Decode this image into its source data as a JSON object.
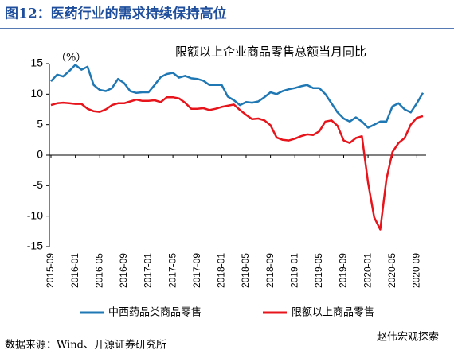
{
  "chart_data": {
    "type": "line",
    "header": "图12：医药行业的需求持续保持高位",
    "title": "限额以上企业商品零售总额当月同比",
    "y_label": "（%）",
    "source": "数据来源：Wind、开源证券研究所",
    "watermark": "赵伟宏观探索",
    "categories": [
      "2015-09",
      null,
      null,
      null,
      "2016-01",
      null,
      null,
      null,
      "2016-05",
      null,
      null,
      null,
      "2016-09",
      null,
      null,
      null,
      "2017-01",
      null,
      null,
      null,
      "2017-05",
      null,
      null,
      null,
      "2017-09",
      null,
      null,
      null,
      "2018-01",
      null,
      null,
      null,
      "2018-05",
      null,
      null,
      null,
      "2018-09",
      null,
      null,
      null,
      "2019-01",
      null,
      null,
      null,
      "2019-05",
      null,
      null,
      null,
      "2019-09",
      null,
      null,
      null,
      "2020-01",
      null,
      null,
      null,
      "2020-05",
      null,
      null,
      null,
      "2020-09",
      null
    ],
    "series": [
      {
        "name": "中西药品类商品零售",
        "color": "#1f77b4",
        "values": [
          12.1,
          13.2,
          12.9,
          13.8,
          14.8,
          14.0,
          14.5,
          11.5,
          10.7,
          10.5,
          11.0,
          12.5,
          11.8,
          10.5,
          10.2,
          10.3,
          10.3,
          11.5,
          12.8,
          13.3,
          13.5,
          12.7,
          13.0,
          12.6,
          12.5,
          12.2,
          11.5,
          11.5,
          11.5,
          9.6,
          9.0,
          8.2,
          8.7,
          8.6,
          8.8,
          9.5,
          10.3,
          10.0,
          10.5,
          10.8,
          11.0,
          11.3,
          11.5,
          11.0,
          11.0,
          10.0,
          8.5,
          7.0,
          6.0,
          5.5,
          6.2,
          5.5,
          4.5,
          5.0,
          5.5,
          5.5,
          8.0,
          8.5,
          7.5,
          7.0,
          8.5,
          10.2
        ]
      },
      {
        "name": "限额以上商品零售",
        "color": "#e8141b",
        "values": [
          8.2,
          8.5,
          8.6,
          8.5,
          8.4,
          8.4,
          7.6,
          7.2,
          7.1,
          7.5,
          8.2,
          8.5,
          8.5,
          8.8,
          9.1,
          8.9,
          8.9,
          9.0,
          8.7,
          9.5,
          9.5,
          9.3,
          8.6,
          7.6,
          7.6,
          7.7,
          7.4,
          7.6,
          7.9,
          8.1,
          8.3,
          7.4,
          6.6,
          5.9,
          6.0,
          5.7,
          4.9,
          2.9,
          2.5,
          2.4,
          2.7,
          3.1,
          3.4,
          3.3,
          3.9,
          5.5,
          5.7,
          4.8,
          2.4,
          2.0,
          2.8,
          3.1,
          -4.5,
          -10.2,
          -12.2,
          -4.0,
          0.5,
          2.0,
          2.8,
          5.0,
          6.1,
          6.4
        ]
      }
    ],
    "ylim": [
      -15,
      15
    ],
    "yticks": [
      15,
      10,
      5,
      0,
      -5,
      -10,
      -15
    ],
    "legend": "bottom"
  }
}
